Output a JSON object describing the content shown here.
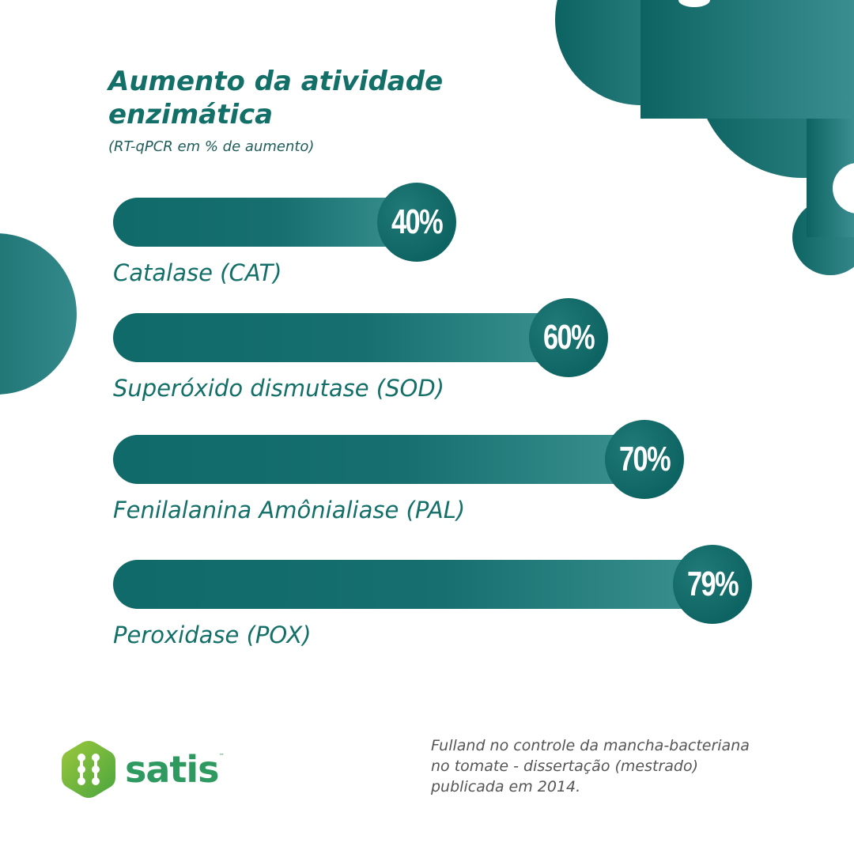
{
  "header": {
    "title_line1": "Aumento da atividade",
    "title_line2": "enzimática",
    "subtitle": "(RT-qPCR em % de aumento)"
  },
  "chart_data": {
    "type": "bar",
    "orientation": "horizontal",
    "title": "Aumento da atividade enzimática",
    "subtitle": "(RT-qPCR em % de aumento)",
    "unit": "%",
    "categories": [
      "Catalase (CAT)",
      "Superóxido dismutase (SOD)",
      "Fenilalanina Amônialiase (PAL)",
      "Peroxidase (POX)"
    ],
    "values": [
      40,
      60,
      70,
      79
    ],
    "value_labels": [
      "40%",
      "60%",
      "70%",
      "79%"
    ],
    "grid": false,
    "legend": "none"
  },
  "brand": {
    "name": "satis",
    "trademark": "™",
    "color": "#2e9a60",
    "icon": "hexagon-dots-logo-icon"
  },
  "source": {
    "line1": "Fulland no controle da mancha-bacteriana",
    "line2": "no tomate -  dissertação (mestrado)",
    "line3": "publicada em 2014."
  },
  "colors": {
    "primary": "#137068",
    "bar_start": "#0f6a69",
    "bar_end": "#3a9190"
  }
}
